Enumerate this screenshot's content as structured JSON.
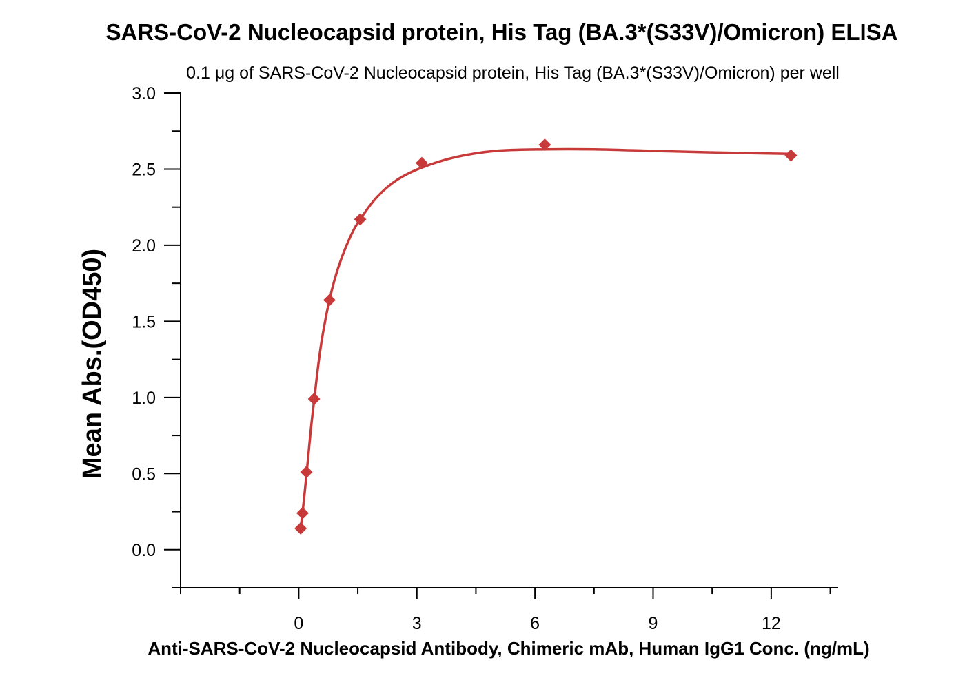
{
  "chart_data": {
    "type": "scatter",
    "title": "SARS-CoV-2 Nucleocapsid protein, His Tag (BA.3*(S33V)/Omicron) ELISA",
    "subtitle": "0.1 μg of SARS-CoV-2 Nucleocapsid protein, His Tag (BA.3*(S33V)/Omicron) per well",
    "xlabel": "Anti-SARS-CoV-2 Nucleocapsid Antibody, Chimeric mAb, Human IgG1 Conc. (ng/mL)",
    "ylabel": "Mean Abs.(OD450)",
    "xlim": [
      -3,
      13.7
    ],
    "ylim": [
      -0.25,
      3.0
    ],
    "x_ticks": [
      0,
      3,
      6,
      9,
      12
    ],
    "x_tick_labels": [
      "0",
      "3",
      "6",
      "9",
      "12"
    ],
    "y_ticks": [
      0.0,
      0.5,
      1.0,
      1.5,
      2.0,
      2.5,
      3.0
    ],
    "y_tick_labels": [
      "0.0",
      "0.5",
      "1.0",
      "1.5",
      "2.0",
      "2.5",
      "3.0"
    ],
    "grid": false,
    "legend": "none",
    "series": [
      {
        "marker": "diamond",
        "color": "#c83a3a",
        "x": [
          0.049,
          0.098,
          0.195,
          0.39,
          0.78,
          1.56,
          3.125,
          6.25,
          12.5
        ],
        "y": [
          0.14,
          0.24,
          0.51,
          0.99,
          1.64,
          2.17,
          2.54,
          2.66,
          2.59
        ]
      }
    ],
    "fit_curve": {
      "color": "#c83a3a",
      "x": [
        0.049,
        0.1,
        0.2,
        0.3,
        0.4,
        0.5,
        0.6,
        0.78,
        1.0,
        1.3,
        1.56,
        2.0,
        2.5,
        3.125,
        4.0,
        5.0,
        6.25,
        7.5,
        9.0,
        10.5,
        12.5
      ],
      "y": [
        0.14,
        0.25,
        0.5,
        0.77,
        1.0,
        1.22,
        1.4,
        1.64,
        1.85,
        2.05,
        2.17,
        2.32,
        2.43,
        2.51,
        2.58,
        2.62,
        2.63,
        2.63,
        2.62,
        2.61,
        2.6
      ]
    }
  }
}
